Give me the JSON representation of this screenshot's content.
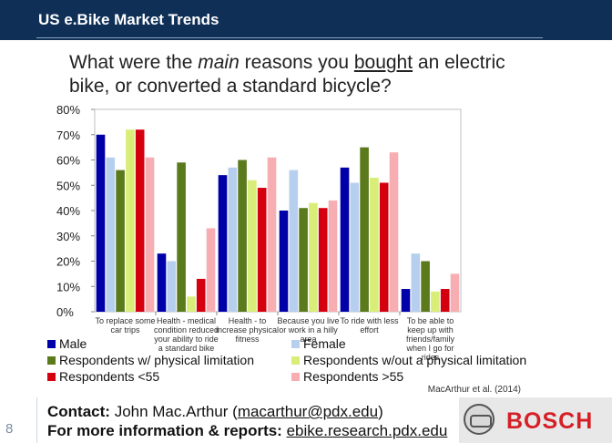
{
  "header": {
    "title": "US e.Bike Market Trends"
  },
  "slide_number": "8",
  "contact": {
    "label": "Contact:",
    "name": "John Mac.Arthur",
    "email": "macarthur@pdx.edu",
    "reports_label": "For more information & reports:",
    "reports_url": "ebike.research.pdx.edu"
  },
  "logo": {
    "text": "BOSCH",
    "color": "#d61f26"
  },
  "chart_data": {
    "type": "bar",
    "title_parts": [
      "What were the ",
      "main",
      " reasons you ",
      "bought",
      " an electric bike, or converted a standard bicycle?"
    ],
    "citation": "MacArthur et al. (2014)",
    "ylim": [
      0,
      80
    ],
    "yticks": [
      "0%",
      "10%",
      "20%",
      "30%",
      "40%",
      "50%",
      "60%",
      "70%",
      "80%"
    ],
    "categories": [
      [
        "To replace some",
        "car trips"
      ],
      [
        "Health - medical",
        "condition reduced",
        "your ability to ride",
        "a standard bike"
      ],
      [
        "Health - to",
        "increase physical",
        "fitness"
      ],
      [
        "Because you live",
        "or work in a hilly",
        "area"
      ],
      [
        "To ride with less",
        "effort"
      ],
      [
        "To be able to",
        "keep up with",
        "friends/family",
        "when I go for",
        "rides"
      ]
    ],
    "series": [
      {
        "name": "Male",
        "color": "#0000a8",
        "values": [
          70,
          23,
          54,
          40,
          57,
          9
        ]
      },
      {
        "name": "Female",
        "color": "#b7cfee",
        "values": [
          61,
          20,
          57,
          56,
          51,
          23
        ]
      },
      {
        "name": "Respondents w/ physical limitation",
        "color": "#5a7a1c",
        "values": [
          56,
          59,
          60,
          41,
          65,
          20
        ]
      },
      {
        "name": "Respondents w/out a physical limitation",
        "color": "#d8ee78",
        "values": [
          72,
          6,
          52,
          43,
          53,
          8
        ]
      },
      {
        "name": "Respondents <55",
        "color": "#d40010",
        "values": [
          72,
          13,
          49,
          41,
          51,
          9
        ]
      },
      {
        "name": "Respondents >55",
        "color": "#f7aeb2",
        "values": [
          61,
          33,
          61,
          44,
          63,
          15
        ]
      }
    ],
    "legend_order": [
      [
        "Male",
        "Female"
      ],
      [
        "Respondents w/ physical limitation",
        "Respondents w/out a physical limitation"
      ],
      [
        "Respondents <55",
        "Respondents >55"
      ]
    ]
  }
}
